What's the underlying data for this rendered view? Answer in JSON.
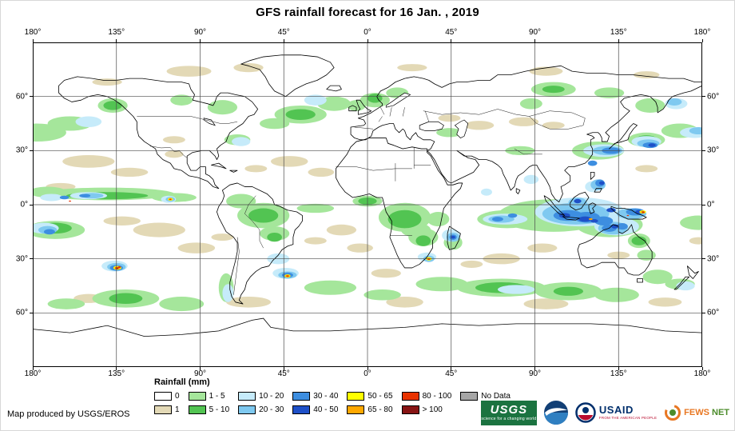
{
  "title": "GFS rainfall forecast for 16 Jan. , 2019",
  "map": {
    "lon_ticks": [
      "180°",
      "135°",
      "90°",
      "45°",
      "0°",
      "45°",
      "90°",
      "135°",
      "180°"
    ],
    "lat_ticks": [
      "60°",
      "30°",
      "0°",
      "30°",
      "60°"
    ]
  },
  "legend": {
    "title": "Rainfall (mm)",
    "items": [
      {
        "label": "0",
        "color": "#FFFFFF"
      },
      {
        "label": "1",
        "color": "#E3D9B6"
      },
      {
        "label": "1 - 5",
        "color": "#A5E69B"
      },
      {
        "label": "5 - 10",
        "color": "#52C452"
      },
      {
        "label": "10 - 20",
        "color": "#C6EBFA"
      },
      {
        "label": "20 - 30",
        "color": "#7FC9F0"
      },
      {
        "label": "30 - 40",
        "color": "#3D8EE0"
      },
      {
        "label": "40 - 50",
        "color": "#1E50C8"
      },
      {
        "label": "50 - 65",
        "color": "#FFFF00"
      },
      {
        "label": "65 - 80",
        "color": "#FFA800"
      },
      {
        "label": "80 - 100",
        "color": "#E83200"
      },
      {
        "label": "> 100",
        "color": "#871414"
      },
      {
        "label": "No Data",
        "color": "#A6A6A6"
      }
    ]
  },
  "footer": {
    "credit": "Map produced by USGS/EROS"
  },
  "logos": {
    "usgs": {
      "name": "USGS",
      "tagline": "science for a changing world",
      "color": "#1B7340"
    },
    "noaa": {
      "name": "noaa-seal-icon"
    },
    "usaid": {
      "name": "USAID",
      "tagline": "FROM THE AMERICAN PEOPLE",
      "blue": "#002F6C",
      "red": "#BA0C2F"
    },
    "fewsnet": {
      "word1": "FEWS",
      "word2": "NET",
      "orange": "#E87722",
      "green": "#4C8C2B"
    }
  }
}
